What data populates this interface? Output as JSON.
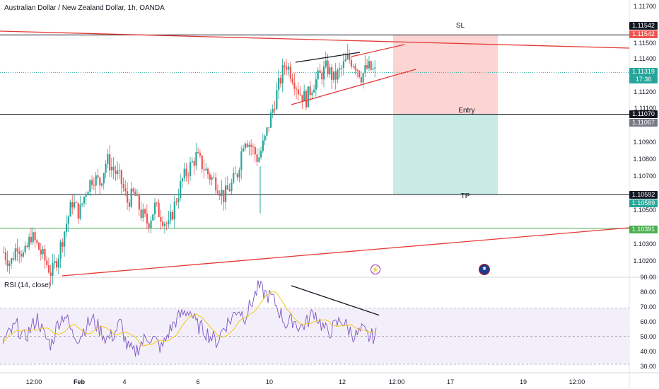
{
  "header": {
    "symbol_title": "Australian Dollar / New Zealand Dollar, 1h, OANDA",
    "rsi_title": "RSI (14, close)"
  },
  "price_axis": {
    "ticks": [
      "1.11700",
      "1.11500",
      "1.11400",
      "1.11200",
      "1.11100",
      "1.10900",
      "1.10800",
      "1.10700",
      "1.10500",
      "1.10300",
      "1.10200"
    ]
  },
  "rsi_axis": {
    "ticks": [
      "90.00",
      "80.00",
      "70.00",
      "60.00",
      "50.00",
      "40.00",
      "30.00"
    ]
  },
  "time_axis": {
    "ticks": [
      "12:00",
      "Feb",
      "4",
      "6",
      "10",
      "12",
      "12:00",
      "17",
      "19",
      "12:00"
    ]
  },
  "price_tags": {
    "sl_line": "1.11542",
    "sl_box": "1.11542",
    "current_price": "1.11319",
    "countdown": "17:36",
    "entry_line": "1.11070",
    "entry_box": "1.11067",
    "tp_line": "1.10592",
    "tp_box": "1.10589",
    "support_line": "1.10391"
  },
  "position_labels": {
    "sl": "SL",
    "entry": "Entry",
    "tp": "TP"
  },
  "icons": {
    "event_icon": "lightning-icon",
    "flag_icon": "australia-flag-icon"
  },
  "colors": {
    "up_candle": "#26a69a",
    "down_candle": "#ef5350",
    "trendline": "#e53935",
    "stop_zone": "#fcd4d3",
    "target_zone": "#c9ebe6",
    "rsi_line": "#7e57c2",
    "rsi_ma": "#f5c400",
    "support": "#4caf50"
  },
  "chart_data": {
    "type": "candlestick",
    "symbol": "AUDNZD",
    "timeframe": "1h",
    "ylim": [
      1.101,
      1.1175
    ],
    "rsi_ylim": [
      25,
      92
    ],
    "levels": {
      "stop_loss": 1.11542,
      "entry": 1.1107,
      "take_profit": 1.10592,
      "support": 1.10391,
      "current": 1.11319
    },
    "price_path": [
      1.1025,
      1.1018,
      1.103,
      1.1022,
      1.1035,
      1.1028,
      1.102,
      1.1012,
      1.1024,
      1.104,
      1.1055,
      1.1048,
      1.1062,
      1.107,
      1.1066,
      1.108,
      1.1074,
      1.1068,
      1.1055,
      1.106,
      1.1048,
      1.1042,
      1.1052,
      1.1046,
      1.104,
      1.1055,
      1.1068,
      1.1075,
      1.1082,
      1.1076,
      1.107,
      1.1066,
      1.1058,
      1.1064,
      1.1072,
      1.1094,
      1.1088,
      1.108,
      1.1092,
      1.1108,
      1.1124,
      1.1138,
      1.113,
      1.112,
      1.1116,
      1.1125,
      1.113,
      1.1135,
      1.1128,
      1.1133,
      1.114,
      1.1138,
      1.113,
      1.1135,
      1.1132
    ],
    "rsi_path": [
      46,
      52,
      58,
      48,
      55,
      63,
      50,
      44,
      60,
      66,
      52,
      49,
      57,
      62,
      55,
      48,
      51,
      60,
      42,
      38,
      45,
      50,
      47,
      41,
      53,
      61,
      66,
      69,
      58,
      55,
      50,
      46,
      57,
      62,
      70,
      64,
      74,
      85,
      80,
      77,
      68,
      58,
      62,
      56,
      60,
      68,
      59,
      52,
      57,
      62,
      55,
      50,
      54,
      49,
      51
    ]
  }
}
